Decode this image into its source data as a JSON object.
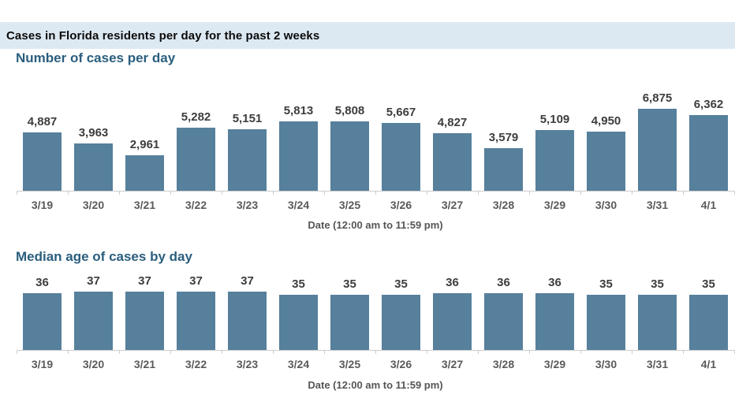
{
  "header": {
    "title": "Cases in Florida residents per day for the past 2 weeks"
  },
  "colors": {
    "bar": "#56809c",
    "header_band_bg": "#dde9f2",
    "chart_title": "#2a5e7e",
    "axis_line": "#cccccc",
    "value_label": "#3d3d3d",
    "date_label": "#5a5a5a"
  },
  "chart_data": [
    {
      "type": "bar",
      "title": "Number of cases per day",
      "categories": [
        "3/19",
        "3/20",
        "3/21",
        "3/22",
        "3/23",
        "3/24",
        "3/25",
        "3/26",
        "3/27",
        "3/28",
        "3/29",
        "3/30",
        "3/31",
        "4/1"
      ],
      "values": [
        4887,
        3963,
        2961,
        5282,
        5151,
        5813,
        5808,
        5667,
        4827,
        3579,
        5109,
        4950,
        6875,
        6362
      ],
      "value_labels": [
        "4,887",
        "3,963",
        "2,961",
        "5,282",
        "5,151",
        "5,813",
        "5,808",
        "5,667",
        "4,827",
        "3,579",
        "5,109",
        "4,950",
        "6,875",
        "6,362"
      ],
      "xlabel": "Date (12:00 am to 11:59 pm)",
      "ylim": [
        0,
        6875
      ],
      "grid": false,
      "legend": null
    },
    {
      "type": "bar",
      "title": "Median age of cases by day",
      "categories": [
        "3/19",
        "3/20",
        "3/21",
        "3/22",
        "3/23",
        "3/24",
        "3/25",
        "3/26",
        "3/27",
        "3/28",
        "3/29",
        "3/30",
        "3/31",
        "4/1"
      ],
      "values": [
        36,
        37,
        37,
        37,
        37,
        35,
        35,
        35,
        36,
        36,
        36,
        35,
        35,
        35
      ],
      "value_labels": [
        "36",
        "37",
        "37",
        "37",
        "37",
        "35",
        "35",
        "35",
        "36",
        "36",
        "36",
        "35",
        "35",
        "35"
      ],
      "xlabel": "Date (12:00 am to 11:59 pm)",
      "ylim": [
        0,
        37
      ],
      "grid": false,
      "legend": null
    }
  ]
}
